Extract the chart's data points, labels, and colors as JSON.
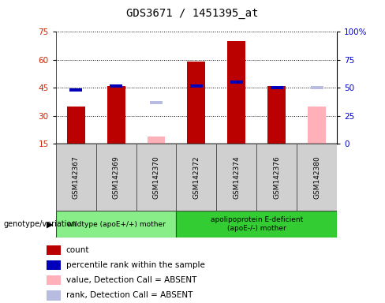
{
  "title": "GDS3671 / 1451395_at",
  "samples": [
    "GSM142367",
    "GSM142369",
    "GSM142370",
    "GSM142372",
    "GSM142374",
    "GSM142376",
    "GSM142380"
  ],
  "count_values": [
    35,
    46,
    null,
    59,
    70,
    46,
    null
  ],
  "percentile_rank": [
    44,
    46,
    null,
    46,
    48,
    45,
    null
  ],
  "absent_value": [
    null,
    null,
    19,
    null,
    null,
    null,
    35
  ],
  "absent_rank": [
    null,
    null,
    37,
    null,
    null,
    null,
    45
  ],
  "ylim_left": [
    15,
    75
  ],
  "ylim_right": [
    0,
    100
  ],
  "yticks_left": [
    15,
    30,
    45,
    60,
    75
  ],
  "yticks_right": [
    0,
    25,
    50,
    75,
    100
  ],
  "ytick_labels_right": [
    "0",
    "25",
    "50",
    "75",
    "100%"
  ],
  "count_color": "#bb0000",
  "percentile_color": "#0000bb",
  "absent_value_color": "#ffb0b8",
  "absent_rank_color": "#b8bce0",
  "group1_label": "wildtype (apoE+/+) mother",
  "group2_label": "apolipoprotein E-deficient\n(apoE-/-) mother",
  "axis_left_color": "#cc2200",
  "axis_right_color": "#0000cc",
  "bg_label": "#d0d0d0",
  "bg_group1": "#88ee88",
  "bg_group2": "#33cc33",
  "legend_items": [
    {
      "label": "count",
      "color": "#bb0000"
    },
    {
      "label": "percentile rank within the sample",
      "color": "#0000bb"
    },
    {
      "label": "value, Detection Call = ABSENT",
      "color": "#ffb0b8"
    },
    {
      "label": "rank, Detection Call = ABSENT",
      "color": "#b8bce0"
    }
  ]
}
